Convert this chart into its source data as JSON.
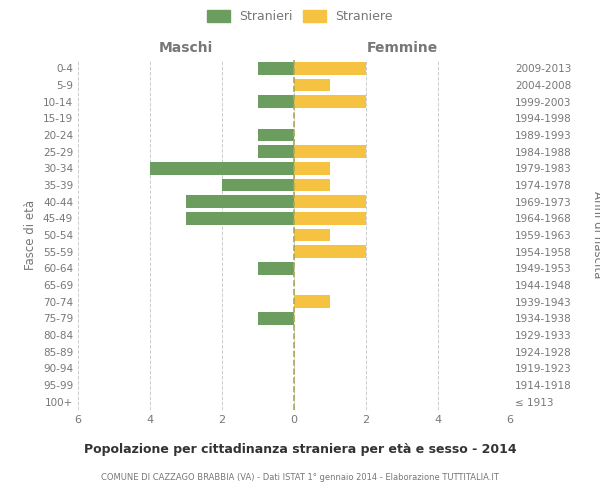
{
  "age_groups": [
    "100+",
    "95-99",
    "90-94",
    "85-89",
    "80-84",
    "75-79",
    "70-74",
    "65-69",
    "60-64",
    "55-59",
    "50-54",
    "45-49",
    "40-44",
    "35-39",
    "30-34",
    "25-29",
    "20-24",
    "15-19",
    "10-14",
    "5-9",
    "0-4"
  ],
  "birth_years": [
    "≤ 1913",
    "1914-1918",
    "1919-1923",
    "1924-1928",
    "1929-1933",
    "1934-1938",
    "1939-1943",
    "1944-1948",
    "1949-1953",
    "1954-1958",
    "1959-1963",
    "1964-1968",
    "1969-1973",
    "1974-1978",
    "1979-1983",
    "1984-1988",
    "1989-1993",
    "1994-1998",
    "1999-2003",
    "2004-2008",
    "2009-2013"
  ],
  "males": [
    0,
    0,
    0,
    0,
    0,
    1,
    0,
    0,
    1,
    0,
    0,
    3,
    3,
    2,
    4,
    1,
    1,
    0,
    1,
    0,
    1
  ],
  "females": [
    0,
    0,
    0,
    0,
    0,
    0,
    1,
    0,
    0,
    2,
    1,
    2,
    2,
    1,
    1,
    2,
    0,
    0,
    2,
    1,
    2
  ],
  "male_color": "#6b9e5e",
  "female_color": "#f5c242",
  "grid_color": "#cccccc",
  "text_color": "#777777",
  "background_color": "#ffffff",
  "title": "Popolazione per cittadinanza straniera per età e sesso - 2014",
  "subtitle": "COMUNE DI CAZZAGO BRABBIA (VA) - Dati ISTAT 1° gennaio 2014 - Elaborazione TUTTITALIA.IT",
  "header_left": "Maschi",
  "header_right": "Femmine",
  "ylabel_left": "Fasce di età",
  "ylabel_right": "Anni di nascita",
  "legend_male": "Stranieri",
  "legend_female": "Straniere",
  "xlim": 6
}
